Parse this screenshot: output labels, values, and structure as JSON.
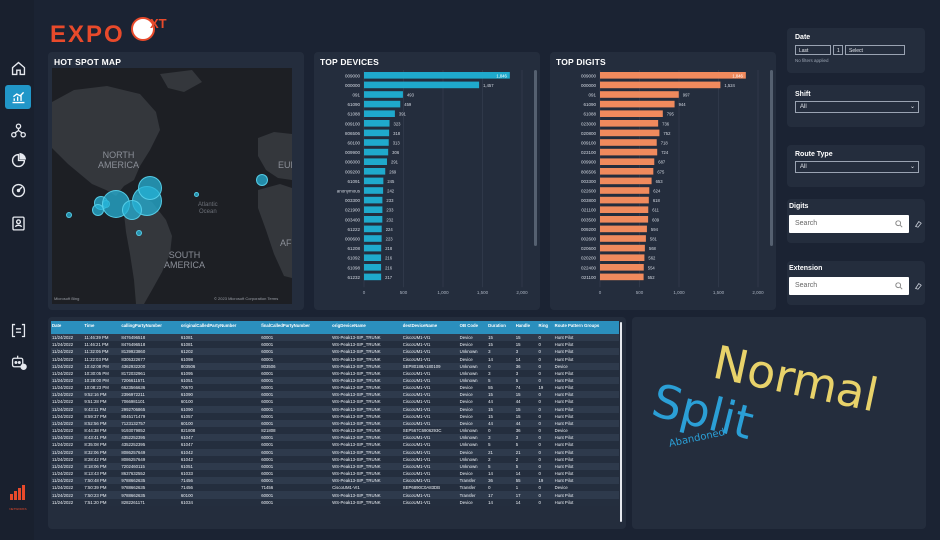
{
  "brand": {
    "logo_text": "EXPO",
    "logo_suffix": "XT",
    "footer_logo": "NETWORKS"
  },
  "colors": {
    "accent": "#2196c8",
    "devices_bar": "#1fa9cc",
    "digits_bar": "#f08a5d",
    "word_normal": "#e8d26a",
    "word_split": "#2b9fd6",
    "word_abandoned": "#2b9fd6"
  },
  "nav": {
    "items": [
      "home-icon",
      "analytics-icon",
      "network-icon",
      "pie-icon",
      "gauge-icon",
      "contact-icon"
    ],
    "bottom_items": [
      "bracket-icon",
      "bot-icon"
    ]
  },
  "map": {
    "title": "HOT SPOT MAP",
    "labels": {
      "north_america": "NORTH\nAMERICA",
      "south_america": "SOUTH\nAMERICA",
      "europe": "EURO",
      "africa": "AFRI",
      "atlantic": "Atlantic\nOcean"
    },
    "attribution": "© 2023 Microsoft Corporation  Terms",
    "bing": "Microsoft Bing"
  },
  "top_devices": {
    "title": "TOP DEVICES",
    "chart_data": {
      "type": "bar",
      "orientation": "horizontal",
      "categories": [
        "009000",
        "000000",
        "091",
        "61090",
        "61088",
        "009100",
        "806506",
        "60100",
        "009900",
        "006000",
        "009200",
        "61091",
        "anonymous",
        "003300",
        "021900",
        "003400",
        "61222",
        "000600",
        "61208",
        "61092",
        "61098",
        "61232"
      ],
      "values": [
        1846,
        1457,
        493,
        459,
        391,
        323,
        318,
        313,
        306,
        291,
        269,
        245,
        242,
        233,
        233,
        232,
        224,
        223,
        218,
        216,
        216,
        217
      ],
      "xticks": [
        "0",
        "500",
        "1,000",
        "1,500",
        "2,000"
      ],
      "xlim": [
        0,
        2000
      ]
    }
  },
  "top_digits": {
    "title": "TOP DIGITS",
    "chart_data": {
      "type": "bar",
      "orientation": "horizontal",
      "categories": [
        "009000",
        "000000",
        "091",
        "61090",
        "61088",
        "023000",
        "020800",
        "009100",
        "023100",
        "009900",
        "806506",
        "003300",
        "022600",
        "003800",
        "021100",
        "003500",
        "009200",
        "002600",
        "020600",
        "020200",
        "022400",
        "021100"
      ],
      "values": [
        1846,
        1524,
        997,
        944,
        795,
        736,
        752,
        718,
        724,
        687,
        675,
        653,
        624,
        618,
        611,
        609,
        594,
        581,
        568,
        562,
        554,
        552
      ],
      "xticks": [
        "0",
        "500",
        "1,000",
        "1,500",
        "2,000"
      ],
      "xlim": [
        0,
        2000
      ]
    }
  },
  "filters": {
    "date": {
      "label": "Date",
      "op": "Last",
      "num": "1",
      "unit": "Select",
      "note": "No filters applied"
    },
    "shift": {
      "label": "Shift",
      "value": "All"
    },
    "route_type": {
      "label": "Route Type",
      "value": "All"
    },
    "digits": {
      "label": "Digits",
      "placeholder": "Search"
    },
    "extension": {
      "label": "Extension",
      "placeholder": "Search"
    }
  },
  "table": {
    "columns": [
      "Date",
      "Time",
      "callingPartyNumber",
      "originalCalledPartyNumber",
      "finalCalledPartyNumber",
      "origDeviceName",
      "destDeviceName",
      "OB Code",
      "Duration",
      "Handle",
      "Ring",
      "Route Pattern Groups"
    ],
    "rows": [
      [
        "11/24/2022",
        "11:46:39 PM",
        "8476496518",
        "61081",
        "60001",
        "WS-Peak13-SIP_TRUNK",
        "CiscoUM1-VI1",
        "Device",
        "15",
        "15",
        "0",
        "Hunt Pilot"
      ],
      [
        "11/24/2022",
        "11:46:21 PM",
        "8476496518",
        "61081",
        "60001",
        "WS-Peak13-SIP_TRUNK",
        "CiscoUM1-VI1",
        "Device",
        "15",
        "15",
        "0",
        "Hunt Pilot"
      ],
      [
        "11/24/2022",
        "11:32:05 PM",
        "8139923860",
        "61202",
        "60001",
        "WS-Peak13-SIP_TRUNK",
        "CiscoUM1-VI1",
        "Unknown",
        "3",
        "3",
        "0",
        "Hunt Pilot"
      ],
      [
        "11/24/2022",
        "11:22:03 PM",
        "8305322677",
        "61098",
        "60001",
        "WS-Peak13-SIP_TRUNK",
        "CiscoUM1-VI1",
        "Device",
        "14",
        "14",
        "0",
        "Hunt Pilot"
      ],
      [
        "11/24/2022",
        "10:42:08 PM",
        "4362932200",
        "803506",
        "803506",
        "WS-Peak13-SIP_TRUNK",
        "SEP80188A180109",
        "Unknown",
        "0",
        "36",
        "0",
        "Device"
      ],
      [
        "11/24/2022",
        "10:30:05 PM",
        "8172032961",
        "61095",
        "60001",
        "WS-Peak13-SIP_TRUNK",
        "CiscoUM1-VI1",
        "Unknown",
        "3",
        "3",
        "0",
        "Hunt Pilot"
      ],
      [
        "11/24/2022",
        "10:28:00 PM",
        "7206611571",
        "61051",
        "60001",
        "WS-Peak13-SIP_TRUNK",
        "CiscoUM1-VI1",
        "Unknown",
        "5",
        "5",
        "0",
        "Hunt Pilot"
      ],
      [
        "11/24/2022",
        "10:08:23 PM",
        "6623566636",
        "70670",
        "60001",
        "WS-Peak13-SIP_TRUNK",
        "CiscoUM1-VI1",
        "Device",
        "55",
        "74",
        "19",
        "Hunt Pilot"
      ],
      [
        "11/24/2022",
        "9:52:16 PM",
        "2396972211",
        "61090",
        "60001",
        "WS-Peak13-SIP_TRUNK",
        "CiscoUM1-VI1",
        "Device",
        "15",
        "15",
        "0",
        "Hunt Pilot"
      ],
      [
        "11/24/2022",
        "9:51:28 PM",
        "7066981101",
        "60100",
        "60001",
        "WS-Peak13-SIP_TRUNK",
        "CiscoUM1-VI1",
        "Device",
        "44",
        "44",
        "0",
        "Hunt Pilot"
      ],
      [
        "11/24/2022",
        "9:43:11 PM",
        "2992706865",
        "61090",
        "60001",
        "WS-Peak13-SIP_TRUNK",
        "CiscoUM1-VI1",
        "Device",
        "15",
        "15",
        "0",
        "Hunt Pilot"
      ],
      [
        "11/24/2022",
        "8:59:37 PM",
        "8045171479",
        "61057",
        "60001",
        "WS-Peak13-SIP_TRUNK",
        "CiscoUM1-VI1",
        "Device",
        "15",
        "15",
        "0",
        "Hunt Pilot"
      ],
      [
        "11/24/2022",
        "8:52:56 PM",
        "7123132757",
        "60100",
        "60001",
        "WS-Peak13-SIP_TRUNK",
        "CiscoUM1-VI1",
        "Device",
        "44",
        "44",
        "0",
        "Hunt Pilot"
      ],
      [
        "11/24/2022",
        "8:44:38 PM",
        "9193079852",
        "821808",
        "821808",
        "WS-Peak13-SIP_TRUNK",
        "SEP567C6906293C",
        "Unknown",
        "0",
        "36",
        "0",
        "Device"
      ],
      [
        "11/24/2022",
        "8:43:41 PM",
        "4352252395",
        "61047",
        "60001",
        "WS-Peak13-SIP_TRUNK",
        "CiscoUM1-VI1",
        "Unknown",
        "3",
        "3",
        "0",
        "Hunt Pilot"
      ],
      [
        "11/24/2022",
        "8:35:08 PM",
        "4352252395",
        "61047",
        "60001",
        "WS-Peak13-SIP_TRUNK",
        "CiscoUM1-VI1",
        "Unknown",
        "5",
        "5",
        "0",
        "Hunt Pilot"
      ],
      [
        "11/24/2022",
        "8:32:06 PM",
        "8086257649",
        "61042",
        "60001",
        "WS-Peak13-SIP_TRUNK",
        "CiscoUM1-VI1",
        "Device",
        "21",
        "21",
        "0",
        "Hunt Pilot"
      ],
      [
        "11/24/2022",
        "8:28:42 PM",
        "8086257649",
        "61042",
        "60001",
        "WS-Peak13-SIP_TRUNK",
        "CiscoUM1-VI1",
        "Unknown",
        "2",
        "2",
        "0",
        "Hunt Pilot"
      ],
      [
        "11/24/2022",
        "8:18:06 PM",
        "7202460115",
        "61051",
        "60001",
        "WS-Peak13-SIP_TRUNK",
        "CiscoUM1-VI1",
        "Unknown",
        "5",
        "5",
        "0",
        "Hunt Pilot"
      ],
      [
        "11/24/2022",
        "8:13:43 PM",
        "8637632552",
        "61033",
        "60001",
        "WS-Peak13-SIP_TRUNK",
        "CiscoUM1-VI1",
        "Device",
        "14",
        "14",
        "0",
        "Hunt Pilot"
      ],
      [
        "11/24/2022",
        "7:50:48 PM",
        "9788662635",
        "71456",
        "60001",
        "WS-Peak13-SIP_TRUNK",
        "CiscoUM1-VI1",
        "Transfer",
        "36",
        "55",
        "19",
        "Hunt Pilot"
      ],
      [
        "11/24/2022",
        "7:50:39 PM",
        "9788662635",
        "71456",
        "71456",
        "CiscoUM1-VI1",
        "SEP6890C0A83DB",
        "Transfer",
        "0",
        "1",
        "0",
        "Device"
      ],
      [
        "11/24/2022",
        "7:50:23 PM",
        "9788662635",
        "60100",
        "60001",
        "WS-Peak13-SIP_TRUNK",
        "CiscoUM1-VI1",
        "Transfer",
        "17",
        "17",
        "0",
        "Hunt Pilot"
      ],
      [
        "11/24/2022",
        "7:51:20 PM",
        "8282261171",
        "61034",
        "60001",
        "WS-Peak13-SIP_TRUNK",
        "CiscoUM1-VI1",
        "Device",
        "14",
        "14",
        "0",
        "Hunt Pilot"
      ]
    ]
  },
  "wordcloud": {
    "words": [
      "Normal",
      "Split",
      "Abandoned"
    ]
  }
}
